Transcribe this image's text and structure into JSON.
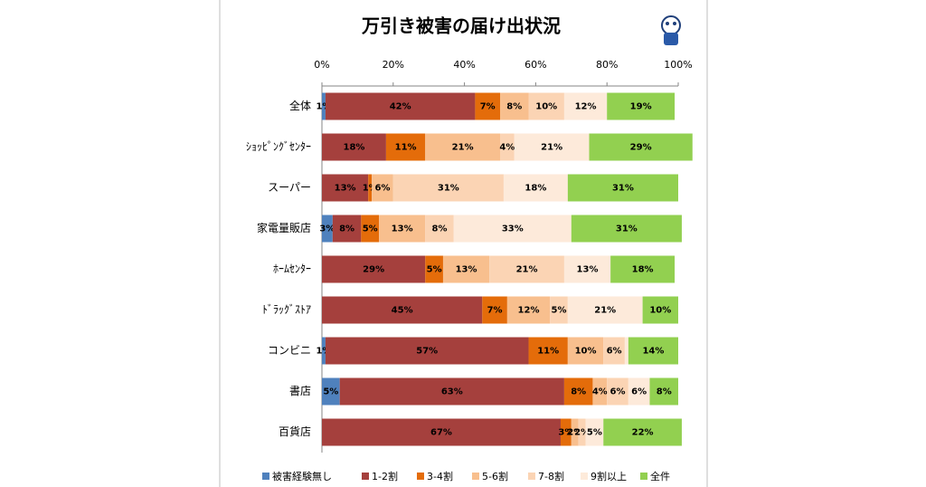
{
  "chart_data": {
    "type": "stacked-bar-horizontal",
    "title": "万引き被害の届け出状況",
    "categories": [
      "全体",
      "ｼｮｯﾋﾟﾝｸﾞｾﾝﾀｰ",
      "スーパー",
      "家電量販店",
      "ﾎｰﾑｾﾝﾀｰ",
      "ﾄﾞﾗｯｸﾞｽﾄｱ",
      "コンビニ",
      "書店",
      "百貨店"
    ],
    "xlim": [
      0,
      100
    ],
    "xticks": [
      {
        "value": 0,
        "label": "0%"
      },
      {
        "value": 20,
        "label": "20%"
      },
      {
        "value": 40,
        "label": "40%"
      },
      {
        "value": 60,
        "label": "60%"
      },
      {
        "value": 80,
        "label": "80%"
      },
      {
        "value": 100,
        "label": "100%"
      }
    ],
    "series": [
      {
        "name": "被害経験無し",
        "color": "#4f81bd",
        "values": [
          1,
          0,
          0,
          3,
          0,
          0,
          1,
          5,
          0
        ],
        "value_labels": [
          "1%",
          null,
          null,
          "3%",
          null,
          null,
          "1%",
          "5%",
          null
        ]
      },
      {
        "name": "1-2割",
        "color": "#a5403d",
        "values": [
          42,
          18,
          13,
          8,
          29,
          45,
          57,
          63,
          67
        ],
        "value_labels": [
          "42%",
          "18%",
          "13%",
          "8%",
          "29%",
          "45%",
          "57%",
          "63%",
          "67%"
        ]
      },
      {
        "name": "3-4割",
        "color": "#e46c0a",
        "values": [
          7,
          11,
          1,
          5,
          5,
          7,
          11,
          8,
          3
        ],
        "value_labels": [
          "7%",
          "11%",
          "1%",
          "5%",
          "5%",
          "7%",
          "11%",
          "8%",
          "3%"
        ]
      },
      {
        "name": "5-6割",
        "color": "#f8bf8e",
        "values": [
          8,
          21,
          6,
          13,
          13,
          12,
          10,
          4,
          2
        ],
        "value_labels": [
          "8%",
          "21%",
          "6%",
          "13%",
          "13%",
          "12%",
          "10%",
          "4%",
          "2%"
        ]
      },
      {
        "name": "7-8割",
        "color": "#fbd4b4",
        "values": [
          10,
          4,
          31,
          8,
          21,
          5,
          6,
          6,
          2
        ],
        "value_labels": [
          "10%",
          "4%",
          "31%",
          "8%",
          "21%",
          "5%",
          "6%",
          "6%",
          "2%"
        ]
      },
      {
        "name": "9割以上",
        "color": "#fdeada",
        "values": [
          12,
          21,
          18,
          33,
          13,
          21,
          1,
          6,
          5
        ],
        "value_labels": [
          "12%",
          "21%",
          "18%",
          "33%",
          "13%",
          "21%",
          null,
          "6%",
          "5%"
        ]
      },
      {
        "name": "全件",
        "color": "#92d050",
        "values": [
          19,
          29,
          31,
          31,
          18,
          10,
          14,
          8,
          22
        ],
        "value_labels": [
          "19%",
          "29%",
          "31%",
          "31%",
          "18%",
          "10%",
          "14%",
          "8%",
          "22%"
        ]
      }
    ]
  }
}
